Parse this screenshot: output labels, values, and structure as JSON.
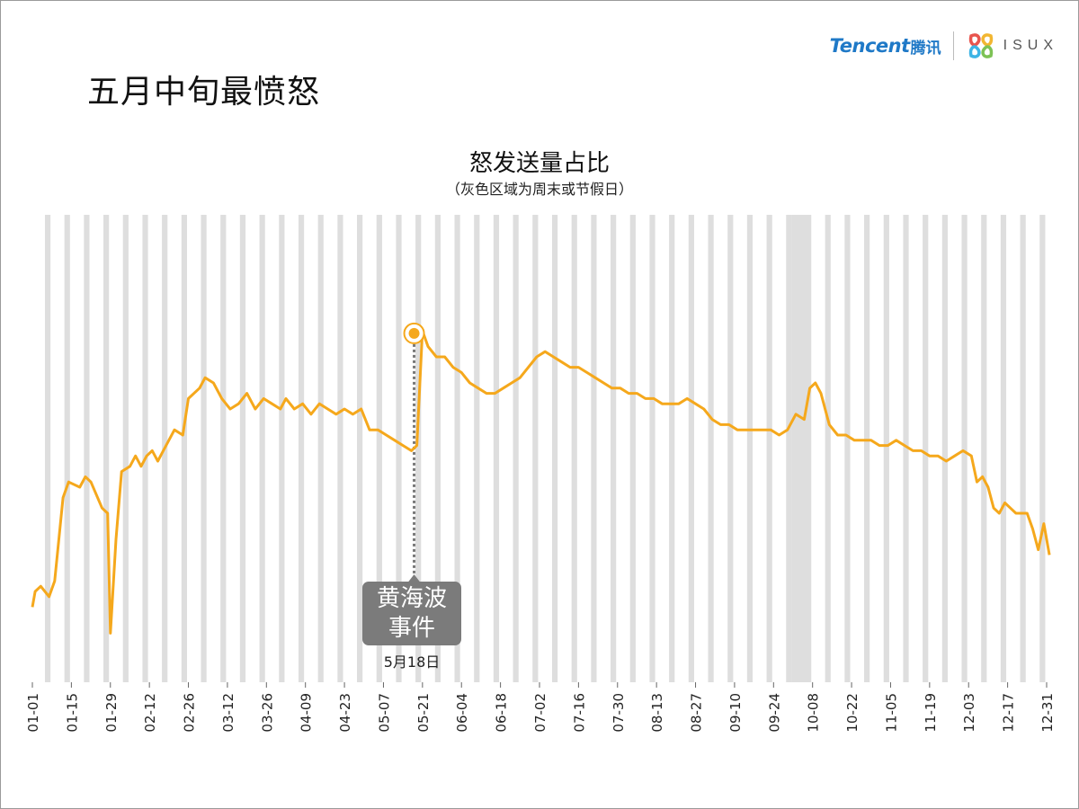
{
  "slide_title": "五月中旬最愤怒",
  "logo": {
    "brand": "Tencent",
    "brand_cn": "腾讯",
    "partner": "ISUX",
    "isux_colors": [
      "#e8554e",
      "#f2b631",
      "#3db4e5",
      "#7dc255"
    ]
  },
  "colors": {
    "line": "#f5a81c",
    "shade": "#dedede",
    "annotation_box": "#7b7b7b",
    "highlight_dot": "#f5a81c"
  },
  "annotation": {
    "line1": "黄海波",
    "line2": "事件",
    "date_label": "5月18日",
    "date": "05-18"
  },
  "chart_data": {
    "type": "line",
    "title": "怒发送量占比",
    "subtitle": "（灰色区域为周末或节假日）",
    "xlabel": "",
    "ylabel": "",
    "x_start": "01-01",
    "x_end": "12-31",
    "categories": [
      "01-01",
      "01-15",
      "01-29",
      "02-12",
      "02-26",
      "03-12",
      "03-26",
      "04-09",
      "04-23",
      "05-07",
      "05-21",
      "06-04",
      "06-18",
      "07-02",
      "07-16",
      "07-30",
      "08-13",
      "08-27",
      "09-10",
      "09-24",
      "10-08",
      "10-22",
      "11-05",
      "11-19",
      "12-03",
      "12-17",
      "12-31"
    ],
    "shaded_regions": "weekends and holidays",
    "holiday_block": [
      "10-01",
      "10-07"
    ],
    "highlight": {
      "x": "05-18",
      "y": 94.5
    },
    "ylim": [
      0,
      100
    ],
    "anchors": [
      [
        1,
        42
      ],
      [
        2,
        45
      ],
      [
        4,
        46
      ],
      [
        7,
        44
      ],
      [
        9,
        47
      ],
      [
        12,
        63
      ],
      [
        14,
        66
      ],
      [
        18,
        65
      ],
      [
        20,
        67
      ],
      [
        22,
        66
      ],
      [
        26,
        61
      ],
      [
        28,
        60
      ],
      [
        29,
        37
      ],
      [
        31,
        55
      ],
      [
        33,
        68
      ],
      [
        36,
        69
      ],
      [
        38,
        71
      ],
      [
        40,
        69
      ],
      [
        42,
        71
      ],
      [
        44,
        72
      ],
      [
        46,
        70
      ],
      [
        48,
        72
      ],
      [
        52,
        76
      ],
      [
        55,
        75
      ],
      [
        57,
        82
      ],
      [
        61,
        84
      ],
      [
        63,
        86
      ],
      [
        66,
        85
      ],
      [
        69,
        82
      ],
      [
        72,
        80
      ],
      [
        75,
        81
      ],
      [
        78,
        83
      ],
      [
        81,
        80
      ],
      [
        84,
        82
      ],
      [
        87,
        81
      ],
      [
        90,
        80
      ],
      [
        92,
        82
      ],
      [
        95,
        80
      ],
      [
        98,
        81
      ],
      [
        101,
        79
      ],
      [
        104,
        81
      ],
      [
        107,
        80
      ],
      [
        110,
        79
      ],
      [
        113,
        80
      ],
      [
        116,
        79
      ],
      [
        119,
        80
      ],
      [
        122,
        76
      ],
      [
        125,
        76
      ],
      [
        128,
        75
      ],
      [
        131,
        74
      ],
      [
        134,
        73
      ],
      [
        137,
        72
      ],
      [
        139,
        73
      ],
      [
        141,
        95
      ],
      [
        143,
        92
      ],
      [
        146,
        90
      ],
      [
        149,
        90
      ],
      [
        152,
        88
      ],
      [
        155,
        87
      ],
      [
        158,
        85
      ],
      [
        161,
        84
      ],
      [
        164,
        83
      ],
      [
        167,
        83
      ],
      [
        170,
        84
      ],
      [
        173,
        85
      ],
      [
        176,
        86
      ],
      [
        179,
        88
      ],
      [
        182,
        90
      ],
      [
        185,
        91
      ],
      [
        188,
        90
      ],
      [
        191,
        89
      ],
      [
        194,
        88
      ],
      [
        197,
        88
      ],
      [
        200,
        87
      ],
      [
        203,
        86
      ],
      [
        206,
        85
      ],
      [
        209,
        84
      ],
      [
        212,
        84
      ],
      [
        215,
        83
      ],
      [
        218,
        83
      ],
      [
        221,
        82
      ],
      [
        224,
        82
      ],
      [
        227,
        81
      ],
      [
        230,
        81
      ],
      [
        233,
        81
      ],
      [
        236,
        82
      ],
      [
        239,
        81
      ],
      [
        242,
        80
      ],
      [
        245,
        78
      ],
      [
        248,
        77
      ],
      [
        251,
        77
      ],
      [
        254,
        76
      ],
      [
        257,
        76
      ],
      [
        260,
        76
      ],
      [
        263,
        76
      ],
      [
        266,
        76
      ],
      [
        269,
        75
      ],
      [
        272,
        76
      ],
      [
        275,
        79
      ],
      [
        278,
        78
      ],
      [
        280,
        84
      ],
      [
        282,
        85
      ],
      [
        284,
        83
      ],
      [
        287,
        77
      ],
      [
        290,
        75
      ],
      [
        293,
        75
      ],
      [
        296,
        74
      ],
      [
        299,
        74
      ],
      [
        302,
        74
      ],
      [
        305,
        73
      ],
      [
        308,
        73
      ],
      [
        311,
        74
      ],
      [
        314,
        73
      ],
      [
        317,
        72
      ],
      [
        320,
        72
      ],
      [
        323,
        71
      ],
      [
        326,
        71
      ],
      [
        329,
        70
      ],
      [
        332,
        71
      ],
      [
        335,
        72
      ],
      [
        338,
        71
      ],
      [
        340,
        66
      ],
      [
        342,
        67
      ],
      [
        344,
        65
      ],
      [
        346,
        61
      ],
      [
        348,
        60
      ],
      [
        350,
        62
      ],
      [
        352,
        61
      ],
      [
        354,
        60
      ],
      [
        356,
        60
      ],
      [
        358,
        60
      ],
      [
        360,
        57
      ],
      [
        362,
        53
      ],
      [
        364,
        58
      ],
      [
        366,
        52
      ]
    ]
  }
}
